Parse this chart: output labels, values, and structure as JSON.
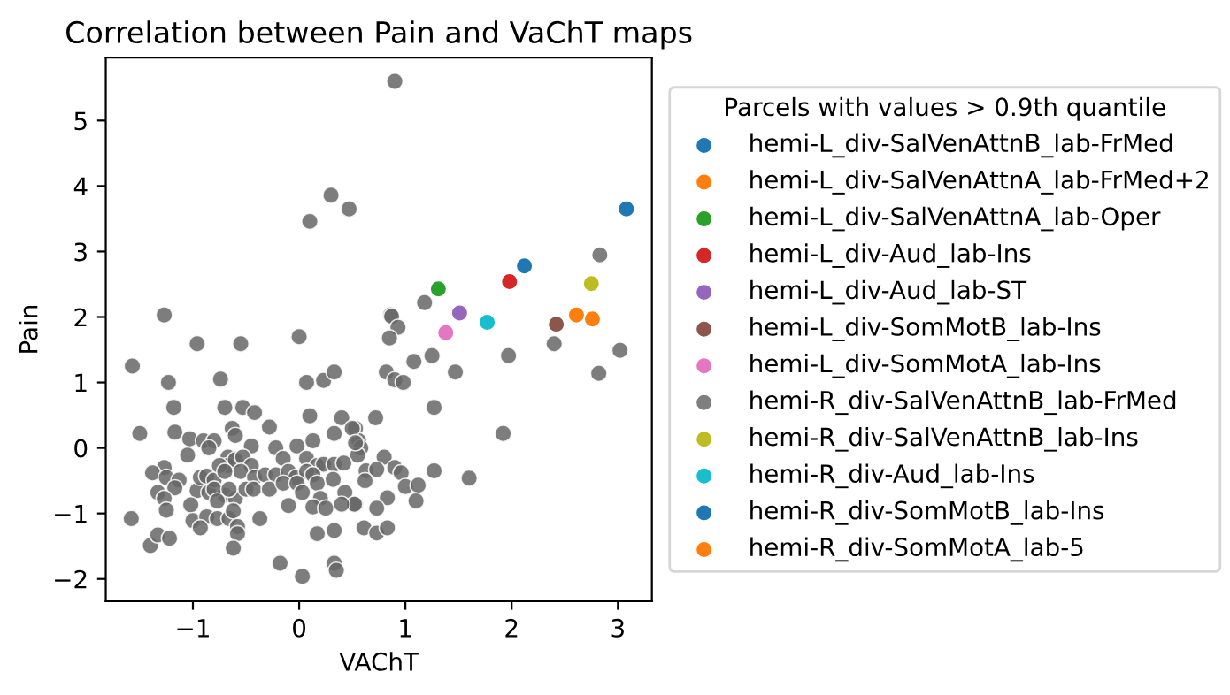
{
  "chart_data": {
    "type": "scatter",
    "title": "Correlation between Pain and VaChT maps",
    "xlabel": "VAChT",
    "ylabel": "Pain",
    "legend_title": "Parcels with values > 0.9th quantile",
    "legend": "right",
    "grid": false,
    "marker": "circle",
    "xlim": [
      -1.82,
      3.32
    ],
    "ylim": [
      -2.34,
      5.96
    ],
    "xticks": [
      {
        "value": -1,
        "label": "−1"
      },
      0,
      1,
      2,
      3
    ],
    "yticks": [
      {
        "value": -2,
        "label": "−2"
      },
      {
        "value": -1,
        "label": "−1"
      },
      0,
      1,
      2,
      3,
      4,
      5
    ],
    "series": [
      {
        "color": "#666666",
        "x": [
          -1.27,
          0.1,
          0.3,
          0.47,
          0.9,
          1.18,
          0.86,
          0.87,
          0.93,
          0.85,
          1.08,
          1.25,
          1.97,
          2.4,
          3.02,
          2.82,
          0.82,
          0.9,
          0.98,
          1.47,
          1.27,
          0.72,
          0.53,
          1.92,
          0.56,
          0.58,
          0.55,
          0.8,
          0.63,
          0.73,
          0.9,
          0.96,
          1.27,
          1.6,
          0.62,
          1.0,
          1.12,
          1.1,
          0.83,
          0.73,
          0.53,
          0.61,
          0.73,
          0.83,
          -1.57,
          -0.96,
          -0.55,
          0.0,
          -1.23,
          -0.74,
          0.07,
          0.23,
          0.33,
          -1.18,
          -0.7,
          -0.53,
          -0.42,
          0.1,
          0.4,
          -1.5,
          -1.17,
          -0.63,
          -0.28,
          0.33,
          0.5,
          -1.03,
          -0.9,
          -0.8,
          -1.05,
          -0.85,
          -0.45,
          -0.22,
          -0.02,
          0.13,
          0.53,
          -0.6,
          -1.27,
          -1.38,
          -1.25,
          -1.13,
          -1.33,
          -1.17,
          -1.27,
          -1.25,
          -0.96,
          -0.85,
          -0.93,
          -0.87,
          -0.8,
          -0.7,
          -0.6,
          -1.02,
          -1.0,
          -0.87,
          -0.93,
          -0.77,
          -0.67,
          -0.67,
          -0.6,
          -0.53,
          -0.45,
          -0.55,
          -0.42,
          -0.32,
          -0.22,
          -0.15,
          0.07,
          0.17,
          0.23,
          0.33,
          0.42,
          -0.1,
          -0.03,
          0.07,
          0.13,
          -0.75,
          -0.7,
          -0.8,
          -0.77,
          -0.66,
          -0.5,
          -0.43,
          -0.28,
          -0.15,
          -0.02,
          0.03,
          0.17,
          0.32,
          0.43,
          0.52,
          0.4,
          0.2,
          0.13,
          0.25,
          -0.66,
          -0.62,
          -0.58,
          -0.58,
          -0.62,
          -0.37,
          -0.1,
          0.17,
          0.33,
          -1.58,
          -1.4,
          -1.33,
          -1.22,
          -0.18,
          0.03,
          0.33,
          0.35
        ],
        "values": [
          2.03,
          3.46,
          3.86,
          3.65,
          5.6,
          2.22,
          2.03,
          2.01,
          1.84,
          1.68,
          1.32,
          1.41,
          1.41,
          1.59,
          1.49,
          1.14,
          1.16,
          1.04,
          1.0,
          1.16,
          0.62,
          0.46,
          0.3,
          0.22,
          0.11,
          0.0,
          -0.11,
          -0.14,
          -0.35,
          -0.33,
          -0.3,
          -0.38,
          -0.35,
          -0.46,
          -0.5,
          -0.59,
          -0.57,
          -0.81,
          -0.76,
          -0.92,
          -0.86,
          -1.22,
          -1.3,
          -1.22,
          1.25,
          1.59,
          1.59,
          1.7,
          1.0,
          1.05,
          1.0,
          1.03,
          1.16,
          0.62,
          0.62,
          0.62,
          0.54,
          0.49,
          0.46,
          0.22,
          0.24,
          0.3,
          0.32,
          0.22,
          0.3,
          0.14,
          0.11,
          0.11,
          -0.11,
          0.0,
          0.03,
          0.0,
          0.03,
          0.11,
          0.08,
          0.19,
          -0.3,
          -0.38,
          -0.45,
          -0.49,
          -0.68,
          -0.61,
          -0.77,
          -0.95,
          -0.65,
          -0.68,
          -0.45,
          -0.43,
          -0.49,
          -0.72,
          -0.77,
          -0.87,
          -1.11,
          -1.05,
          -1.22,
          -1.08,
          -0.14,
          -0.27,
          -0.18,
          -0.14,
          -0.27,
          -0.36,
          -0.45,
          -0.41,
          -0.41,
          -0.16,
          -0.16,
          -0.27,
          -0.25,
          -0.25,
          -0.23,
          -0.36,
          -0.45,
          -0.36,
          -0.41,
          -0.27,
          -0.36,
          -0.63,
          -0.81,
          -0.63,
          -0.63,
          -0.63,
          -0.63,
          -0.54,
          -0.54,
          -0.68,
          -0.54,
          -0.48,
          -0.68,
          -0.86,
          -0.86,
          -0.77,
          -0.9,
          -0.92,
          -1.08,
          -0.96,
          -1.2,
          -1.31,
          -1.53,
          -1.08,
          -0.88,
          -1.31,
          -1.26,
          -1.08,
          -1.49,
          -1.33,
          -1.38,
          -1.76,
          -1.96,
          -1.76,
          -1.87
        ]
      },
      {
        "name": "hemi-L_div-SalVenAttnB_lab-FrMed",
        "color": "#1f77b4",
        "x": [
          2.12
        ],
        "values": [
          2.78
        ]
      },
      {
        "name": "hemi-L_div-SalVenAttnA_lab-FrMed+2",
        "color": "#ff7f0e",
        "x": [
          2.61
        ],
        "values": [
          2.03
        ]
      },
      {
        "name": "hemi-L_div-SalVenAttnA_lab-Oper",
        "color": "#2ca02c",
        "x": [
          1.31
        ],
        "values": [
          2.43
        ]
      },
      {
        "name": "hemi-L_div-Aud_lab-Ins",
        "color": "#d62728",
        "x": [
          1.98
        ],
        "values": [
          2.54
        ]
      },
      {
        "name": "hemi-L_div-Aud_lab-ST",
        "color": "#9467bd",
        "x": [
          1.51
        ],
        "values": [
          2.06
        ]
      },
      {
        "name": "hemi-L_div-SomMotB_lab-Ins",
        "color": "#8c564b",
        "x": [
          2.42
        ],
        "values": [
          1.89
        ]
      },
      {
        "name": "hemi-L_div-SomMotA_lab-Ins",
        "color": "#e377c2",
        "x": [
          1.38
        ],
        "values": [
          1.76
        ]
      },
      {
        "name": "hemi-R_div-SalVenAttnB_lab-FrMed",
        "color": "#7f7f7f",
        "x": [
          2.83
        ],
        "values": [
          2.95
        ]
      },
      {
        "name": "hemi-R_div-SalVenAttnB_lab-Ins",
        "color": "#bcbd22",
        "x": [
          2.75
        ],
        "values": [
          2.51
        ]
      },
      {
        "name": "hemi-R_div-Aud_lab-Ins",
        "color": "#17becf",
        "x": [
          1.77
        ],
        "values": [
          1.92
        ]
      },
      {
        "name": "hemi-R_div-SomMotB_lab-Ins",
        "color": "#1f77b4",
        "x": [
          3.08
        ],
        "values": [
          3.65
        ]
      },
      {
        "name": "hemi-R_div-SomMotA_lab-5",
        "color": "#ff7f0e",
        "x": [
          2.76
        ],
        "values": [
          1.97
        ]
      }
    ]
  }
}
